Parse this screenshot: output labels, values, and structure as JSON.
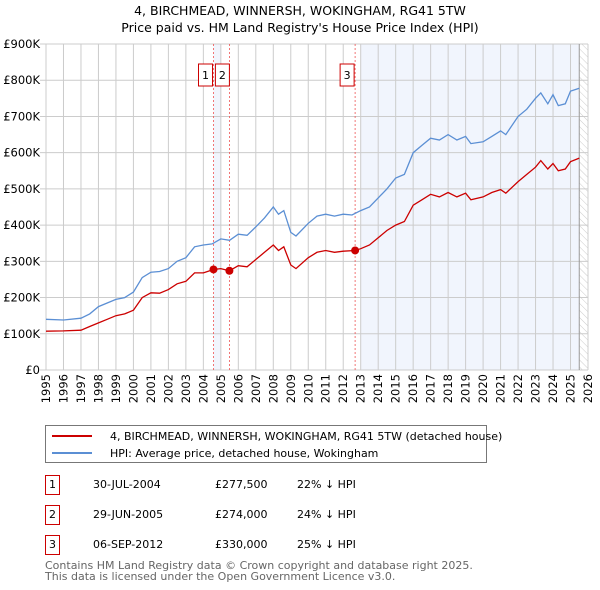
{
  "chart_data": {
    "type": "line",
    "title": "4, BIRCHMEAD, WINNERSH, WOKINGHAM, RG41 5TW",
    "subtitle": "Price paid vs. HM Land Registry's House Price Index (HPI)",
    "xlim": [
      1995,
      2026
    ],
    "ylim": [
      0,
      900000
    ],
    "yticks": [
      {
        "v": 0,
        "label": "£0"
      },
      {
        "v": 100000,
        "label": "£100K"
      },
      {
        "v": 200000,
        "label": "£200K"
      },
      {
        "v": 300000,
        "label": "£300K"
      },
      {
        "v": 400000,
        "label": "£400K"
      },
      {
        "v": 500000,
        "label": "£500K"
      },
      {
        "v": 600000,
        "label": "£600K"
      },
      {
        "v": 700000,
        "label": "£700K"
      },
      {
        "v": 800000,
        "label": "£800K"
      },
      {
        "v": 900000,
        "label": "£900K"
      }
    ],
    "xticks": [
      "1995",
      "1996",
      "1997",
      "1998",
      "1999",
      "2000",
      "2001",
      "2002",
      "2003",
      "2004",
      "2005",
      "2006",
      "2007",
      "2008",
      "2009",
      "2010",
      "2011",
      "2012",
      "2013",
      "2014",
      "2015",
      "2016",
      "2017",
      "2018",
      "2019",
      "2020",
      "2021",
      "2022",
      "2023",
      "2024",
      "2025",
      "2026"
    ],
    "grid": true,
    "series": [
      {
        "name": "4, BIRCHMEAD, WINNERSH, WOKINGHAM, RG41 5TW (detached house)",
        "color": "#cc0000",
        "x": [
          1995,
          1996,
          1997,
          1997.5,
          1998,
          1998.5,
          1999,
          1999.5,
          2000,
          2000.5,
          2001,
          2001.5,
          2002,
          2002.5,
          2003,
          2003.5,
          2004,
          2004.58,
          2005,
          2005.49,
          2006,
          2006.5,
          2007,
          2007.5,
          2008,
          2008.3,
          2008.6,
          2009,
          2009.3,
          2010,
          2010.5,
          2011,
          2011.5,
          2012,
          2012.68,
          2013,
          2013.5,
          2014,
          2014.5,
          2015,
          2015.5,
          2016,
          2016.5,
          2017,
          2017.5,
          2018,
          2018.5,
          2019,
          2019.3,
          2020,
          2020.5,
          2021,
          2021.3,
          2022,
          2022.5,
          2023,
          2023.3,
          2023.7,
          2024,
          2024.3,
          2024.7,
          2025,
          2025.5
        ],
        "y": [
          107,
          108,
          110,
          120,
          130,
          140,
          150,
          155,
          165,
          200,
          213,
          212,
          222,
          238,
          245,
          268,
          268,
          277.5,
          280,
          274,
          288,
          285,
          305,
          325,
          345,
          330,
          340,
          290,
          280,
          310,
          325,
          330,
          325,
          328,
          330,
          335,
          345,
          365,
          385,
          400,
          410,
          455,
          470,
          485,
          478,
          490,
          478,
          488,
          470,
          478,
          490,
          498,
          488,
          520,
          540,
          560,
          578,
          555,
          570,
          550,
          555,
          575,
          585
        ]
      },
      {
        "name": "HPI: Average price, detached house, Wokingham",
        "color": "#5b8fd4",
        "x": [
          1995,
          1996,
          1997,
          1997.5,
          1998,
          1998.5,
          1999,
          1999.5,
          2000,
          2000.5,
          2001,
          2001.5,
          2002,
          2002.5,
          2003,
          2003.5,
          2004,
          2004.5,
          2005,
          2005.5,
          2006,
          2006.5,
          2007,
          2007.5,
          2008,
          2008.3,
          2008.6,
          2009,
          2009.3,
          2010,
          2010.5,
          2011,
          2011.5,
          2012,
          2012.5,
          2013,
          2013.5,
          2014,
          2014.5,
          2015,
          2015.5,
          2016,
          2016.5,
          2017,
          2017.5,
          2018,
          2018.5,
          2019,
          2019.3,
          2020,
          2020.5,
          2021,
          2021.3,
          2022,
          2022.5,
          2023,
          2023.3,
          2023.7,
          2024,
          2024.3,
          2024.7,
          2025,
          2025.5
        ],
        "y": [
          140,
          138,
          143,
          155,
          175,
          185,
          195,
          200,
          215,
          255,
          270,
          272,
          280,
          300,
          310,
          340,
          345,
          348,
          362,
          358,
          375,
          372,
          395,
          420,
          450,
          430,
          440,
          380,
          370,
          405,
          425,
          430,
          425,
          430,
          428,
          440,
          450,
          475,
          500,
          530,
          540,
          600,
          620,
          640,
          635,
          650,
          635,
          645,
          625,
          630,
          645,
          660,
          650,
          700,
          720,
          750,
          765,
          735,
          760,
          730,
          735,
          770,
          778
        ]
      }
    ],
    "y_units": "thousands GBP",
    "sales": [
      {
        "n": "1",
        "x": 2004.58,
        "y": 277.5,
        "date": "30-JUL-2004",
        "price": "£277,500",
        "hpi": "22% ↓ HPI"
      },
      {
        "n": "2",
        "x": 2005.49,
        "y": 274,
        "date": "29-JUN-2005",
        "price": "£274,000",
        "hpi": "24% ↓ HPI"
      },
      {
        "n": "3",
        "x": 2012.68,
        "y": 330,
        "date": "06-SEP-2012",
        "price": "£330,000",
        "hpi": "25% ↓ HPI"
      }
    ],
    "shaded_ranges": [
      [
        2004.58,
        2005.0
      ],
      [
        2013.0,
        2025.5
      ]
    ],
    "hatched_from": 2025.5,
    "legend_placement": "below"
  },
  "footer": {
    "line1": "Contains HM Land Registry data © Crown copyright and database right 2025.",
    "line2": "This data is licensed under the Open Government Licence v3.0."
  }
}
